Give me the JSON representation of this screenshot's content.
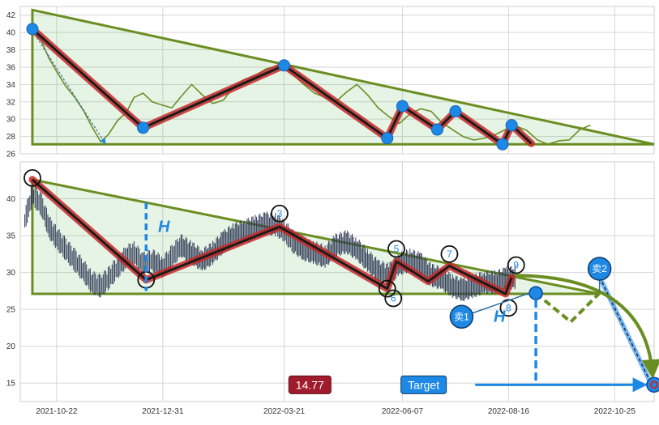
{
  "chart_data": [
    {
      "type": "line",
      "ylim": [
        26,
        43
      ],
      "yticks": [
        26,
        28,
        30,
        32,
        34,
        36,
        38,
        40,
        42
      ],
      "grid": true,
      "xlim_date": [
        "2021-09-28",
        "2022-11-20"
      ],
      "series": [
        {
          "x": [
            "2021-10-06",
            "2021-10-12",
            "2021-10-17",
            "2021-10-22",
            "2021-10-28",
            "2021-11-03",
            "2021-11-09",
            "2021-11-14",
            "2021-11-20",
            "2021-11-25",
            "2021-12-01",
            "2021-12-07",
            "2021-12-12",
            "2021-12-18",
            "2021-12-24",
            "2021-12-31",
            "2022-01-06",
            "2022-01-12",
            "2022-01-19",
            "2022-01-26",
            "2022-02-02",
            "2022-02-09",
            "2022-02-16",
            "2022-02-23",
            "2022-03-02",
            "2022-03-09",
            "2022-03-16",
            "2022-03-21",
            "2022-03-27",
            "2022-04-03",
            "2022-04-10",
            "2022-04-17",
            "2022-04-24",
            "2022-05-01",
            "2022-05-08",
            "2022-05-15",
            "2022-05-22",
            "2022-05-29",
            "2022-06-05",
            "2022-06-12",
            "2022-06-19",
            "2022-06-26",
            "2022-07-03",
            "2022-07-10",
            "2022-07-17",
            "2022-07-24",
            "2022-07-31",
            "2022-08-07",
            "2022-08-14",
            "2022-08-21",
            "2022-08-28",
            "2022-09-04",
            "2022-09-11",
            "2022-09-18",
            "2022-09-25",
            "2022-10-02",
            "2022-10-09"
          ],
          "y": [
            40.4,
            39.0,
            37.0,
            35.5,
            33.8,
            32.5,
            30.9,
            29.2,
            27.4,
            28.2,
            29.8,
            30.8,
            32.5,
            33.0,
            32.0,
            31.6,
            31.3,
            32.6,
            34.0,
            32.8,
            31.8,
            32.2,
            33.8,
            34.6,
            35.0,
            35.8,
            36.1,
            36.0,
            35.1,
            34.0,
            33.0,
            32.5,
            32.0,
            33.1,
            34.0,
            32.8,
            31.3,
            30.3,
            29.5,
            30.6,
            31.2,
            30.9,
            29.6,
            28.8,
            28.0,
            27.6,
            27.8,
            28.2,
            28.8,
            29.2,
            28.7,
            27.6,
            27.1,
            27.5,
            27.6,
            28.8,
            29.3
          ]
        }
      ],
      "pattern": {
        "points": [
          {
            "x": "2021-10-06",
            "y": 40.4
          },
          {
            "x": "2021-12-18",
            "y": 29.0
          },
          {
            "x": "2022-03-21",
            "y": 36.2
          },
          {
            "x": "2022-05-28",
            "y": 27.8
          },
          {
            "x": "2022-06-07",
            "y": 31.5
          },
          {
            "x": "2022-06-30",
            "y": 28.8
          },
          {
            "x": "2022-07-12",
            "y": 30.9
          },
          {
            "x": "2022-08-12",
            "y": 27.1
          },
          {
            "x": "2022-08-18",
            "y": 29.3
          },
          {
            "x": "2022-08-31",
            "y": 27.2
          }
        ],
        "triangle": [
          {
            "x": "2021-10-06",
            "y": 42.6
          },
          {
            "x": "2022-11-20",
            "y": 27.1
          },
          {
            "x": "2021-10-06",
            "y": 27.1
          }
        ],
        "dashed_arrow": [
          {
            "x": "2021-10-06",
            "y": 40.2
          },
          {
            "x": "2021-11-23",
            "y": 27.2
          }
        ]
      }
    },
    {
      "type": "line",
      "ylim": [
        12.5,
        45
      ],
      "yticks": [
        15,
        20,
        25,
        30,
        35,
        40
      ],
      "grid": true,
      "xlim_date": [
        "2021-09-28",
        "2022-11-20"
      ],
      "xticks": [
        "2021-10-22",
        "2021-12-31",
        "2022-03-21",
        "2022-06-07",
        "2022-08-16",
        "2022-10-25"
      ],
      "series": [
        {
          "x": [
            "2021-10-01",
            "2021-10-06",
            "2021-10-12",
            "2021-10-17",
            "2021-10-22",
            "2021-10-28",
            "2021-11-03",
            "2021-11-09",
            "2021-11-14",
            "2021-11-20",
            "2021-11-25",
            "2021-12-01",
            "2021-12-07",
            "2021-12-12",
            "2021-12-18",
            "2021-12-24",
            "2021-12-31",
            "2022-01-06",
            "2022-01-12",
            "2022-01-19",
            "2022-01-26",
            "2022-02-02",
            "2022-02-09",
            "2022-02-16",
            "2022-02-23",
            "2022-03-02",
            "2022-03-09",
            "2022-03-16",
            "2022-03-21",
            "2022-03-27",
            "2022-04-03",
            "2022-04-10",
            "2022-04-17",
            "2022-04-24",
            "2022-05-01",
            "2022-05-08",
            "2022-05-15",
            "2022-05-22",
            "2022-05-29",
            "2022-06-05",
            "2022-06-12",
            "2022-06-19",
            "2022-06-26",
            "2022-07-03",
            "2022-07-10",
            "2022-07-17",
            "2022-07-24",
            "2022-07-31",
            "2022-08-07",
            "2022-08-14",
            "2022-08-21"
          ],
          "y": [
            37.0,
            40.5,
            39.0,
            36.0,
            34.5,
            33.0,
            31.5,
            30.0,
            28.5,
            28.0,
            29.0,
            30.5,
            32.0,
            32.5,
            31.0,
            31.5,
            30.5,
            32.0,
            33.5,
            32.5,
            31.5,
            32.5,
            34.0,
            35.0,
            35.5,
            36.0,
            36.5,
            36.3,
            35.5,
            34.0,
            33.0,
            32.5,
            32.0,
            33.5,
            34.0,
            33.0,
            31.5,
            30.0,
            29.5,
            31.0,
            31.5,
            31.0,
            29.5,
            29.0,
            28.0,
            27.5,
            28.0,
            28.5,
            28.5,
            29.0,
            29.2
          ]
        }
      ],
      "pattern": {
        "points": [
          {
            "x": "2021-10-06",
            "y": 42.6
          },
          {
            "x": "2021-12-20",
            "y": 29.0
          },
          {
            "x": "2022-03-18",
            "y": 36.2
          },
          {
            "x": "2022-05-28",
            "y": 27.8
          },
          {
            "x": "2022-06-03",
            "y": 31.5
          },
          {
            "x": "2022-06-24",
            "y": 28.8
          },
          {
            "x": "2022-07-08",
            "y": 30.9
          },
          {
            "x": "2022-08-14",
            "y": 27.1
          },
          {
            "x": "2022-08-18",
            "y": 29.3
          }
        ],
        "triangle": [
          {
            "x": "2021-10-06",
            "y": 42.6
          },
          {
            "x": "2022-10-15",
            "y": 27.1
          },
          {
            "x": "2021-10-06",
            "y": 27.1
          }
        ],
        "marker_labels": [
          "3",
          "5",
          "6",
          "7",
          "8",
          "9"
        ],
        "marker_label_points": [
          {
            "x": "2022-03-18",
            "y": 38.0
          },
          {
            "x": "2022-06-03",
            "y": 33.2
          },
          {
            "x": "2022-06-01",
            "y": 26.5
          },
          {
            "x": "2022-07-08",
            "y": 32.5
          },
          {
            "x": "2022-08-16",
            "y": 25.2
          },
          {
            "x": "2022-08-21",
            "y": 31.0
          }
        ],
        "H_label": "H",
        "sell1": {
          "label": "卖1",
          "x": "2022-07-16",
          "y": 24.0,
          "target": {
            "x": "2022-09-03",
            "y": 27.2
          }
        },
        "sell2": {
          "label": "卖2",
          "x": "2022-10-15",
          "y": 30.5
        },
        "target_label": "Target",
        "target_value": "14.77",
        "target_point": {
          "x": "2022-11-20",
          "y": 14.77
        },
        "zigzag_forecast": [
          {
            "x": "2022-09-03",
            "y": 27.2
          },
          {
            "x": "2022-09-26",
            "y": 23.3
          },
          {
            "x": "2022-10-15",
            "y": 27.2
          }
        ],
        "colors": {
          "pattern_line": "#c62828",
          "triangle": "#6b8e23",
          "blue": "#1e88e5",
          "target_box": "#a01c2c"
        }
      }
    }
  ]
}
